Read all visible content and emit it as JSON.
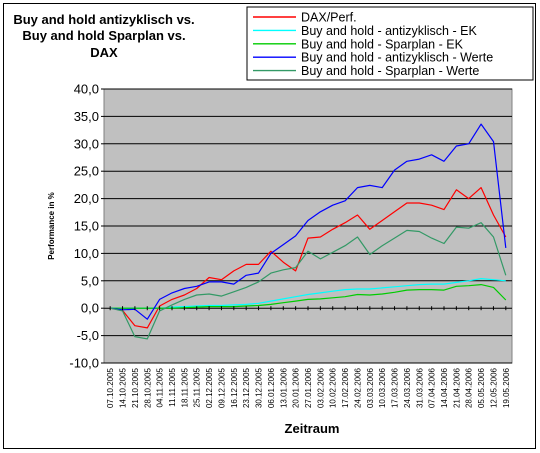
{
  "chart_data": {
    "type": "line",
    "title_lines": [
      "Buy and hold antizyklisch vs.",
      "Buy and hold Sparplan vs.",
      "DAX"
    ],
    "xlabel": "Zeitraum",
    "ylabel": "Performance in %",
    "ylim": [
      -10,
      40
    ],
    "yticks": [
      "-10,0",
      "-5,0",
      "0,0",
      "5,0",
      "10,0",
      "15,0",
      "20,0",
      "25,0",
      "30,0",
      "35,0",
      "40,0"
    ],
    "ytick_values": [
      -10,
      -5,
      0,
      5,
      10,
      15,
      20,
      25,
      30,
      35,
      40
    ],
    "x": [
      "07.10.2005",
      "14.10.2005",
      "21.10.2005",
      "28.10.2005",
      "04.11.2005",
      "11.11.2005",
      "18.11.2005",
      "25.11.2005",
      "02.12.2005",
      "09.12.2005",
      "16.12.2005",
      "23.12.2005",
      "30.12.2005",
      "06.01.2006",
      "13.01.2006",
      "20.01.2006",
      "27.01.2006",
      "03.02.2006",
      "10.02.2006",
      "17.02.2006",
      "24.02.2006",
      "03.03.2006",
      "10.03.2006",
      "17.03.2006",
      "24.03.2006",
      "31.03.2006",
      "07.04.2006",
      "14.04.2006",
      "21.04.2006",
      "28.04.2006",
      "05.05.2006",
      "12.05.2006",
      "19.05.2006"
    ],
    "xtick_labels": [
      "07.10.2005",
      "14.10.2005",
      "21.10.2005",
      "28.10.2005",
      "04.11.2005",
      "11.11.2005",
      "18.11.2005",
      "25.11.2005",
      "02.12.2005",
      "09.12.2005",
      "16.12.2005",
      "23.12.2005",
      "30.12.2005",
      "06.01.2006",
      "13.01.2006",
      "20.01.2006",
      "27.01.2006",
      "03.02.2006",
      "10.02.2006",
      "17.02.2006",
      "24.02.2006",
      "03.03.2006",
      "10.03.2006",
      "17.03.2006",
      "24.03.2006",
      "31.03.2006",
      "07.04.2006",
      "14.04.2006",
      "21.04.2006",
      "28.04.2006",
      "05.05.2006",
      "12.05.2006",
      "19.05.2006"
    ],
    "grid": true,
    "legend_position": "top-right",
    "series": [
      {
        "name": "DAX/Perf.",
        "color": "#ff0000",
        "values": [
          0,
          -0.4,
          -3.2,
          -3.6,
          0.4,
          1.6,
          2.4,
          3.6,
          5.6,
          5.2,
          6.8,
          8.0,
          8.0,
          10.4,
          8.4,
          6.8,
          12.8,
          13.0,
          14.4,
          15.6,
          17.0,
          14.4,
          16.0,
          17.6,
          19.2,
          19.2,
          18.8,
          18.0,
          21.6,
          20.0,
          22.0,
          17.0,
          13.0
        ]
      },
      {
        "name": "Buy and hold - antizyklisch - EK",
        "color": "#00ffff",
        "values": [
          0,
          0,
          0,
          0,
          0,
          0.2,
          0.3,
          0.4,
          0.5,
          0.5,
          0.6,
          0.7,
          0.9,
          1.3,
          1.7,
          2.1,
          2.5,
          2.8,
          3.1,
          3.4,
          3.5,
          3.5,
          3.7,
          3.9,
          4.1,
          4.3,
          4.4,
          4.4,
          4.7,
          5.0,
          5.4,
          5.2,
          5.0
        ]
      },
      {
        "name": "Buy and hold - Sparplan - EK",
        "color": "#00cc00",
        "values": [
          0,
          0,
          0,
          0,
          0,
          0,
          0.1,
          0.2,
          0.3,
          0.3,
          0.3,
          0.4,
          0.5,
          0.7,
          1.0,
          1.3,
          1.6,
          1.7,
          1.9,
          2.1,
          2.5,
          2.4,
          2.6,
          2.9,
          3.3,
          3.4,
          3.4,
          3.3,
          4.0,
          4.1,
          4.3,
          3.8,
          1.5
        ]
      },
      {
        "name": "Buy and hold - antizyklisch - Werte",
        "color": "#0000ff",
        "values": [
          0,
          -0.3,
          -0.2,
          -2.0,
          1.6,
          2.8,
          3.6,
          4.0,
          4.8,
          4.8,
          4.4,
          6.0,
          6.4,
          10.0,
          11.6,
          13.2,
          16.0,
          17.6,
          18.8,
          19.6,
          22.0,
          22.4,
          22.0,
          25.2,
          26.8,
          27.2,
          28.0,
          26.8,
          29.6,
          30.0,
          33.6,
          30.4,
          11.0
        ]
      },
      {
        "name": "Buy and hold - Sparplan - Werte",
        "color": "#339966",
        "values": [
          0,
          -0.5,
          -5.2,
          -5.6,
          -0.5,
          0.6,
          1.6,
          2.4,
          2.6,
          2.2,
          3.0,
          3.8,
          4.8,
          6.4,
          7.0,
          7.4,
          10.4,
          9.0,
          10.2,
          11.4,
          13.0,
          9.8,
          11.4,
          12.8,
          14.2,
          14.0,
          12.8,
          11.8,
          14.8,
          14.6,
          15.6,
          13.0,
          6.0
        ]
      }
    ]
  }
}
